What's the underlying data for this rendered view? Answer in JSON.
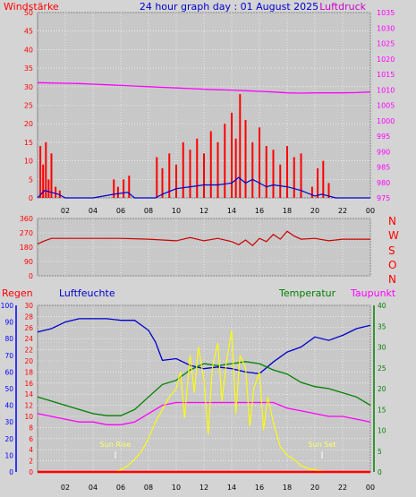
{
  "header": {
    "left_label": "Windstärke",
    "title": "24 hour graph day : 01 August 2025",
    "right_label": "Luftdruck"
  },
  "direction_labels": [
    "N",
    "W",
    "S",
    "O",
    "N"
  ],
  "bottom_legend": {
    "regen": "Regen",
    "luftfeuchte": "Luftfeuchte",
    "temperatur": "Temperatur",
    "taupunkt": "Taupunkt"
  },
  "annotations": {
    "sunrise": "Sun Rise",
    "sunset": "Sun Set"
  },
  "colors": {
    "background": "#d4d4d4",
    "plot_bg": "#c8c8c8",
    "grid": "#ffffff",
    "wind_speed": "#ff0000",
    "wind_avg": "#0000cc",
    "wind_green": "#008800",
    "pressure": "#ff00ff",
    "direction": "#cc0000",
    "rain": "#ff0000",
    "humidity": "#0000cc",
    "temperature": "#008000",
    "dewpoint": "#ff00ff",
    "solar": "#ffff00",
    "axis_red": "#ff0000",
    "axis_blue": "#0000ff",
    "axis_green": "#008000",
    "axis_magenta": "#ff00ff",
    "sun_label": "#ffff66"
  },
  "chart_data": [
    {
      "type": "line",
      "x_ticks": [
        "02",
        "04",
        "06",
        "08",
        "10",
        "12",
        "14",
        "16",
        "18",
        "20",
        "22",
        "00"
      ],
      "y_left_ticks": [
        "0",
        "5",
        "10",
        "15",
        "20",
        "25",
        "30",
        "35",
        "40",
        "45",
        "50"
      ],
      "y_right_ticks": [
        "975",
        "980",
        "985",
        "990",
        "995",
        "1000",
        "1005",
        "1010",
        "1015",
        "1020",
        "1025",
        "1030",
        "1035"
      ],
      "ylim_left": [
        0,
        50
      ],
      "ylim_right": [
        975,
        1035
      ],
      "xlim_hours": [
        0,
        24
      ],
      "series": [
        {
          "name": "Luftdruck",
          "axis": "right",
          "color": "#ff00ff",
          "x": [
            0,
            1,
            2,
            3,
            4,
            5,
            6,
            7,
            8,
            9,
            10,
            11,
            12,
            13,
            14,
            15,
            16,
            17,
            18,
            19,
            20,
            21,
            22,
            23,
            24
          ],
          "y": [
            1012.3,
            1012.2,
            1012.1,
            1012.0,
            1011.8,
            1011.6,
            1011.4,
            1011.2,
            1011.0,
            1010.8,
            1010.6,
            1010.4,
            1010.2,
            1010.0,
            1009.9,
            1009.7,
            1009.5,
            1009.3,
            1009.0,
            1008.9,
            1009.0,
            1009.0,
            1009.0,
            1009.1,
            1009.3
          ]
        },
        {
          "name": "Windstärke (Böen)",
          "axis": "left",
          "color": "#ff0000",
          "x": [
            0.2,
            0.4,
            0.6,
            0.8,
            1.0,
            1.3,
            1.6,
            2.0,
            3.0,
            4.0,
            5.0,
            5.5,
            5.8,
            6.2,
            6.6,
            7.0,
            8.0,
            8.6,
            9.0,
            9.5,
            10.0,
            10.5,
            11.0,
            11.5,
            12.0,
            12.5,
            13.0,
            13.5,
            14.0,
            14.3,
            14.6,
            15.0,
            15.5,
            16.0,
            16.5,
            17.0,
            17.5,
            18.0,
            18.5,
            19.0,
            19.5,
            19.8,
            20.2,
            20.6,
            21.0,
            22.0,
            24.0
          ],
          "y": [
            14,
            9,
            15,
            5,
            12,
            3,
            2,
            0,
            0,
            0,
            0,
            5,
            3,
            5,
            6,
            0,
            0,
            11,
            8,
            12,
            9,
            15,
            13,
            16,
            12,
            18,
            15,
            20,
            23,
            16,
            28,
            21,
            15,
            19,
            14,
            13,
            9,
            14,
            11,
            12,
            0,
            3,
            8,
            10,
            4,
            0,
            0
          ]
        },
        {
          "name": "Windstärke (Mittel)",
          "axis": "left",
          "color": "#0000cc",
          "x": [
            0,
            0.5,
            1.0,
            1.5,
            2.0,
            4.0,
            5.5,
            6.5,
            7.0,
            8.5,
            9.0,
            10.0,
            11.0,
            12.0,
            13.0,
            14.0,
            14.5,
            15.0,
            15.5,
            16.0,
            16.5,
            17.0,
            18.0,
            19.0,
            20.0,
            20.5,
            21.0,
            21.5,
            24.0
          ],
          "y": [
            0,
            2,
            1.5,
            1,
            0,
            0,
            1,
            1.5,
            0,
            0,
            1,
            2.5,
            3,
            3.5,
            3.5,
            4,
            5.5,
            4,
            5,
            4,
            3,
            3.5,
            3,
            2,
            0.5,
            1,
            0.5,
            0,
            0
          ]
        },
        {
          "name": "Windrichtung",
          "axis": "direction",
          "color": "#cc0000",
          "ylim": [
            0,
            360
          ],
          "y_ticks": [
            "0",
            "90",
            "180",
            "270",
            "360"
          ],
          "x": [
            0,
            0.5,
            1.0,
            2.0,
            4.0,
            6.0,
            8.0,
            9.0,
            10.0,
            11.0,
            12.0,
            13.0,
            14.0,
            14.5,
            15.0,
            15.5,
            16.0,
            16.5,
            17.0,
            17.5,
            18.0,
            18.5,
            19.0,
            20.0,
            21.0,
            22.0,
            24.0
          ],
          "y": [
            200,
            220,
            235,
            235,
            235,
            235,
            230,
            225,
            220,
            240,
            220,
            235,
            215,
            195,
            225,
            190,
            235,
            215,
            260,
            230,
            280,
            250,
            230,
            235,
            220,
            230,
            230
          ]
        },
        {
          "name": "Luftfeuchte",
          "axis": "humidity",
          "color": "#0000cc",
          "ylim": [
            0,
            100
          ],
          "x": [
            0,
            1,
            2,
            3,
            4,
            5,
            6,
            7,
            8,
            8.5,
            9,
            10,
            11,
            12,
            13,
            14,
            15,
            16,
            17,
            18,
            19,
            20,
            21,
            22,
            23,
            24
          ],
          "y": [
            84,
            86,
            90,
            92,
            92,
            92,
            91,
            91,
            85,
            78,
            67,
            68,
            64,
            62,
            63,
            62,
            60,
            59,
            66,
            72,
            75,
            81,
            79,
            82,
            86,
            88
          ]
        },
        {
          "name": "Temperatur",
          "axis": "temperature",
          "color": "#008000",
          "ylim": [
            0,
            40
          ],
          "x": [
            0,
            1,
            2,
            3,
            4,
            5,
            6,
            7,
            8,
            9,
            10,
            11,
            12,
            13,
            14,
            15,
            16,
            17,
            18,
            19,
            20,
            21,
            22,
            23,
            24
          ],
          "y": [
            18,
            17,
            16,
            15,
            14,
            13.5,
            13.5,
            15,
            18,
            21,
            22,
            24.5,
            26,
            25.5,
            26,
            26.5,
            26,
            24.5,
            23.5,
            21.5,
            20.5,
            20,
            19,
            18,
            16
          ]
        },
        {
          "name": "Taupunkt",
          "axis": "left",
          "color": "#ff00ff",
          "ylim": [
            0,
            30
          ],
          "x": [
            0,
            1,
            2,
            3,
            4,
            5,
            6,
            7,
            8,
            9,
            10,
            11,
            12,
            13,
            14,
            15,
            16,
            17,
            18,
            19,
            20,
            21,
            22,
            23,
            24
          ],
          "y": [
            10.5,
            10,
            9.5,
            9,
            9,
            8.5,
            8.5,
            9,
            10.5,
            12,
            12.5,
            12.5,
            12.5,
            12.5,
            12.5,
            12.5,
            12.5,
            12.5,
            11.5,
            11,
            10.5,
            10,
            10,
            9.5,
            9
          ]
        },
        {
          "name": "Solar",
          "axis": "temperature",
          "color": "#ffff00",
          "ylim": [
            0,
            40
          ],
          "x": [
            0,
            5.5,
            6.0,
            6.5,
            7.0,
            7.5,
            8.0,
            8.5,
            9.0,
            9.5,
            10.0,
            10.3,
            10.6,
            11.0,
            11.3,
            11.6,
            12.0,
            12.3,
            12.6,
            13.0,
            13.3,
            13.6,
            14.0,
            14.3,
            14.6,
            15.0,
            15.3,
            15.6,
            16.0,
            16.3,
            16.6,
            17.0,
            17.5,
            18.0,
            18.5,
            19.0,
            19.5,
            20.0,
            20.5,
            21.0,
            24.0
          ],
          "y": [
            0,
            0,
            0.5,
            1.5,
            3,
            5,
            8,
            12,
            15,
            18,
            20,
            24,
            13,
            28,
            19,
            30,
            22,
            9,
            25,
            31,
            17,
            26,
            34,
            14,
            28,
            25,
            11,
            20,
            24,
            10,
            18,
            12,
            6,
            4,
            3,
            1.5,
            0.8,
            0.5,
            0.2,
            0,
            0
          ]
        },
        {
          "name": "Regen",
          "axis": "left",
          "color": "#ff0000",
          "ylim": [
            0,
            30
          ],
          "x": [
            0,
            24
          ],
          "y": [
            0,
            0
          ]
        }
      ],
      "sunrise_hour": 5.5,
      "sunset_hour": 20.6,
      "bottom_y_ticks_rain": [
        "0",
        "2",
        "4",
        "6",
        "8",
        "10",
        "12",
        "14",
        "16",
        "18",
        "20",
        "22",
        "24",
        "26",
        "28",
        "30"
      ],
      "bottom_y_ticks_humidity": [
        "0",
        "10",
        "20",
        "30",
        "40",
        "50",
        "60",
        "70",
        "80",
        "90",
        "100"
      ],
      "bottom_y_ticks_temp": [
        "0",
        "5",
        "10",
        "15",
        "20",
        "25",
        "30",
        "35",
        "40"
      ]
    }
  ]
}
